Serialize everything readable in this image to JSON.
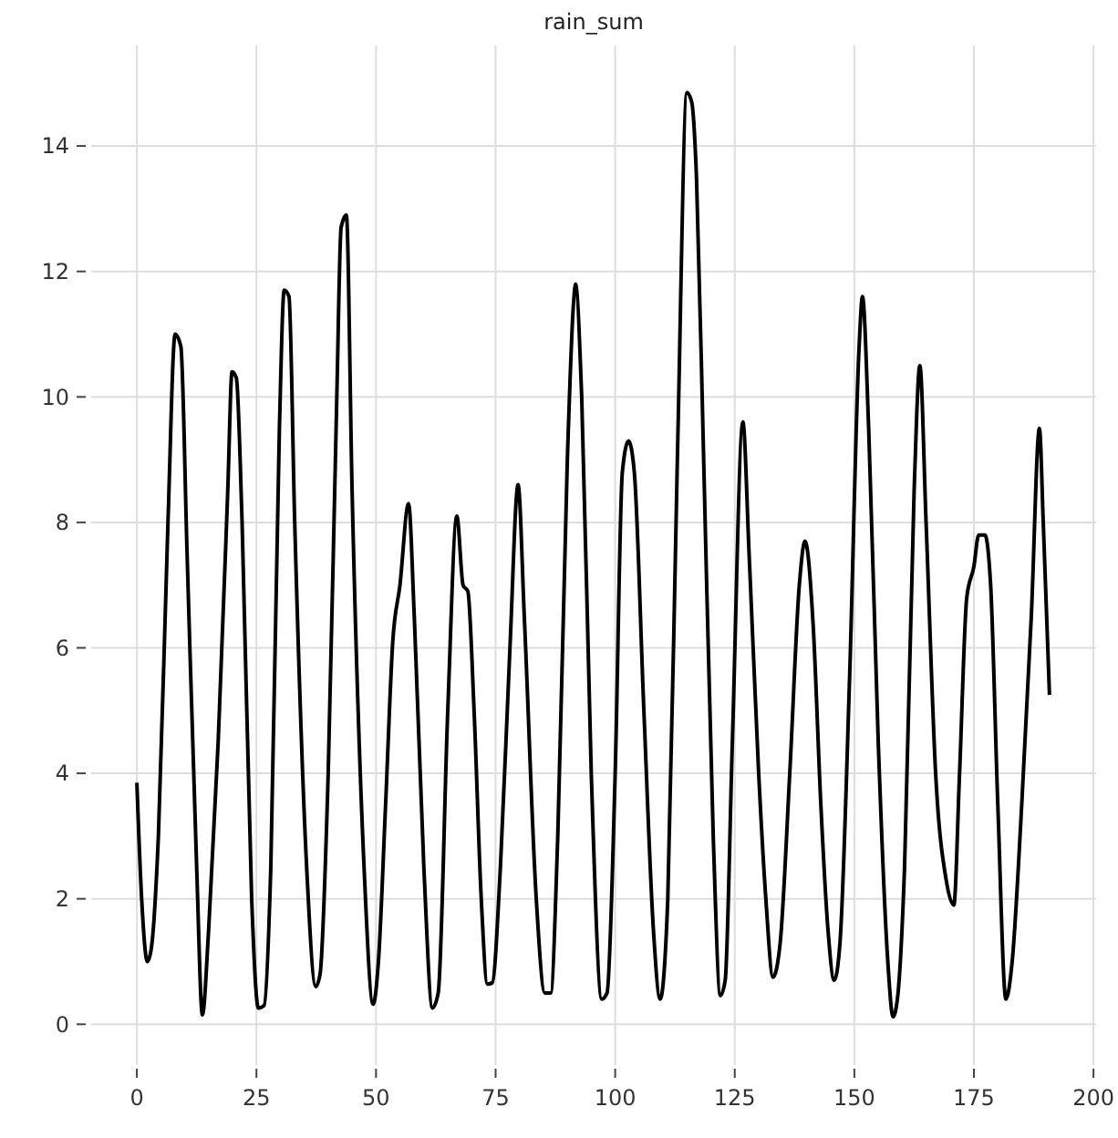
{
  "chart_data": {
    "type": "line",
    "title": "rain_sum",
    "x": [
      0,
      1,
      2.2,
      3,
      4.5,
      6.5,
      8,
      9.2,
      10.5,
      12.5,
      13.7,
      15,
      17,
      19,
      19.9,
      20.8,
      22,
      24,
      25.4,
      26.6,
      28,
      29.8,
      30.8,
      31.8,
      33,
      35.5,
      37.4,
      38.3,
      40,
      41.8,
      42.7,
      43.8,
      45,
      47.5,
      49.4,
      50.5,
      52,
      53.5,
      55,
      56.8,
      58,
      60,
      61.8,
      63,
      65,
      66.9,
      68.2,
      69.2,
      70.5,
      72,
      73.3,
      74.3,
      76,
      78,
      79.7,
      81,
      83.5,
      85.3,
      86.5,
      88,
      90,
      91.3,
      91.7,
      93,
      95,
      97.2,
      98.3,
      100,
      101.5,
      102.8,
      104,
      106,
      108,
      109.4,
      111,
      113,
      115,
      116,
      117,
      118.5,
      120.5,
      122,
      123,
      124.5,
      126.7,
      128,
      130,
      131.5,
      133,
      134.5,
      136.5,
      138.5,
      139.7,
      141.4,
      143,
      144.5,
      145.8,
      147,
      149,
      151,
      151.7,
      153,
      155,
      157,
      158.1,
      159,
      160.5,
      162.5,
      163.7,
      165,
      167,
      169.2,
      170.8,
      172,
      173.5,
      175,
      176,
      177.3,
      178.5,
      180,
      181.7,
      183,
      185,
      187,
      188.7,
      189.5,
      190.8
    ],
    "series": [
      {
        "color": "#000000",
        "values": [
          3.85,
          2.0,
          1.0,
          1.2,
          3,
          8,
          11.0,
          10.8,
          7.5,
          2.5,
          0.15,
          1.5,
          4.5,
          8.5,
          10.4,
          10.3,
          8,
          2,
          0.26,
          0.3,
          2.5,
          9.5,
          11.7,
          11.6,
          8,
          2.5,
          0.6,
          0.8,
          4,
          10,
          12.7,
          12.9,
          8.5,
          2.5,
          0.32,
          1,
          3.5,
          6.1,
          7,
          8.3,
          6.5,
          2.5,
          0.26,
          0.5,
          5,
          8.1,
          7.0,
          6.9,
          5,
          2,
          0.64,
          0.66,
          2.5,
          6,
          8.6,
          6.5,
          2,
          0.5,
          0.5,
          3,
          9,
          11.5,
          11.8,
          10,
          4,
          0.4,
          0.5,
          4,
          8.8,
          9.3,
          8.8,
          5,
          1.5,
          0.4,
          2,
          9,
          14.85,
          14.7,
          13.5,
          9,
          3,
          0.46,
          0.7,
          4.5,
          9.6,
          7.5,
          4,
          2,
          0.75,
          1.3,
          4,
          7,
          7.7,
          6.35,
          3.5,
          1.5,
          0.7,
          1.3,
          5.5,
          10.8,
          11.6,
          9.5,
          4.5,
          1,
          0.12,
          0.4,
          2.5,
          8.5,
          10.5,
          8,
          4,
          2.3,
          1.9,
          4,
          6.8,
          7.3,
          7.8,
          7.8,
          7,
          3.5,
          0.4,
          1,
          3.5,
          6.5,
          9.5,
          8,
          5.25
        ]
      }
    ],
    "xlim": [
      -9.55,
      200.55
    ],
    "xticks": [
      0,
      25,
      50,
      75,
      100,
      125,
      150,
      175,
      200
    ],
    "ylim": [
      -0.65,
      15.6
    ],
    "yticks": [
      0,
      2,
      4,
      6,
      8,
      10,
      12,
      14
    ],
    "grid": true,
    "line_style": "solid",
    "marker": "none"
  }
}
